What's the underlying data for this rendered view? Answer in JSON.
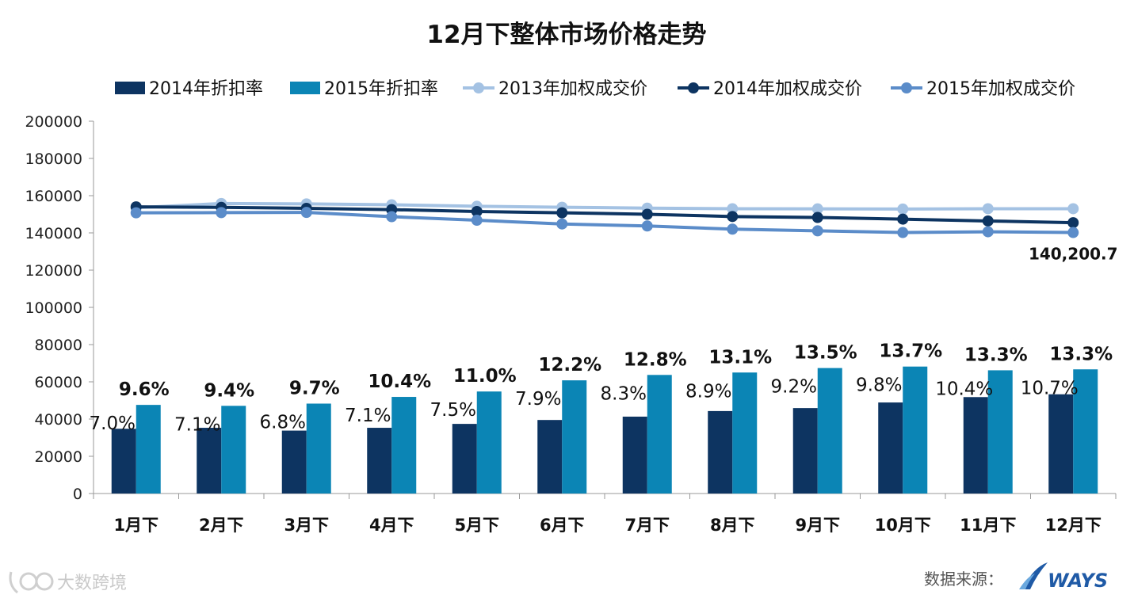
{
  "chart_data": {
    "type": "bar",
    "title": "12月下整体市场价格走势",
    "categories": [
      "1月下",
      "2月下",
      "3月下",
      "4月下",
      "5月下",
      "6月下",
      "7月下",
      "8月下",
      "9月下",
      "10月下",
      "11月下",
      "12月下"
    ],
    "yticks": [
      "0",
      "20000",
      "40000",
      "60000",
      "80000",
      "100000",
      "120000",
      "140000",
      "160000",
      "180000",
      "200000"
    ],
    "ylim": [
      0,
      200000
    ],
    "grid": false,
    "legend_position": "top",
    "bar_series": [
      {
        "name": "2014年折扣率",
        "color": "#0d3461",
        "values": [
          34800,
          35300,
          33800,
          35300,
          37400,
          39500,
          41300,
          44300,
          45900,
          48900,
          51800,
          53300
        ],
        "labels": [
          "7.0%",
          "7.1%",
          "6.8%",
          "7.1%",
          "7.5%",
          "7.9%",
          "8.3%",
          "8.9%",
          "9.2%",
          "9.8%",
          "10.4%",
          "10.7%"
        ]
      },
      {
        "name": "2015年折扣率",
        "color": "#0b85b5",
        "values": [
          47600,
          47100,
          48300,
          51900,
          54800,
          60800,
          63700,
          65000,
          67400,
          68200,
          66200,
          66700
        ],
        "labels": [
          "9.6%",
          "9.4%",
          "9.7%",
          "10.4%",
          "11.0%",
          "12.2%",
          "12.8%",
          "13.1%",
          "13.5%",
          "13.7%",
          "13.3%",
          "13.3%"
        ]
      }
    ],
    "line_series": [
      {
        "name": "2013年加权成交价",
        "color": "#a4c2e3",
        "values": [
          153500,
          155800,
          155600,
          155100,
          154300,
          153800,
          153300,
          153000,
          152900,
          152800,
          153000,
          153000
        ]
      },
      {
        "name": "2014年加权成交价",
        "color": "#0d3461",
        "values": [
          154000,
          153700,
          153200,
          152500,
          151500,
          150800,
          150000,
          148800,
          148300,
          147400,
          146400,
          145500
        ]
      },
      {
        "name": "2015年加权成交价",
        "color": "#5b8cc9",
        "values": [
          150800,
          150900,
          151000,
          148700,
          146800,
          144800,
          143700,
          142000,
          141100,
          140200,
          140600,
          140200.7
        ],
        "end_label": "140,200.7"
      }
    ]
  },
  "footer": {
    "source_label": "数据来源：",
    "brand": "WAYS",
    "watermark": "大数跨境"
  }
}
